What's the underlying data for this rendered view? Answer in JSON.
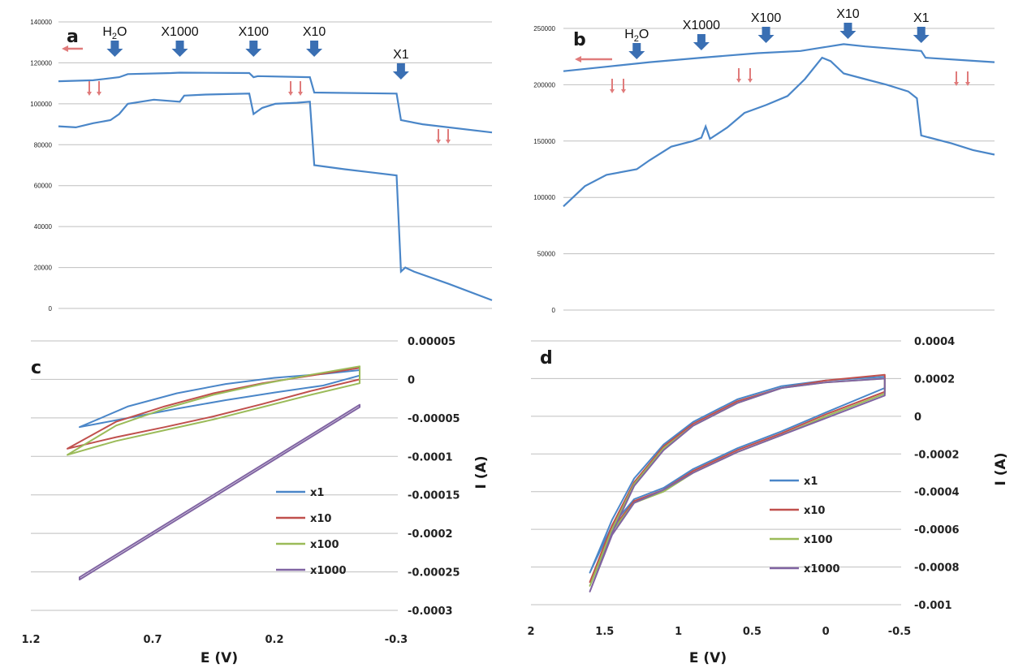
{
  "chart_data": [
    {
      "panel": "a",
      "type": "line",
      "ylim": [
        0,
        140000
      ],
      "yticks": [
        "0",
        "20000",
        "40000",
        "60000",
        "80000",
        "100000",
        "120000",
        "140000"
      ],
      "annotations": [
        {
          "label": "H",
          "sub": "2",
          "tail": "O",
          "at": 0.13
        },
        {
          "label": "X1000",
          "sub": "",
          "tail": "",
          "at": 0.28
        },
        {
          "label": "X100",
          "sub": "",
          "tail": "",
          "at": 0.45
        },
        {
          "label": "X10",
          "sub": "",
          "tail": "",
          "at": 0.59
        },
        {
          "label": "X1",
          "sub": "",
          "tail": "",
          "at": 0.79
        }
      ],
      "series": [
        {
          "values": [
            [
              0,
              111000
            ],
            [
              0.08,
              111500
            ],
            [
              0.14,
              113000
            ],
            [
              0.16,
              114500
            ],
            [
              0.26,
              115000
            ],
            [
              0.28,
              115200
            ],
            [
              0.44,
              115000
            ],
            [
              0.45,
              113000
            ],
            [
              0.46,
              113500
            ],
            [
              0.58,
              113000
            ],
            [
              0.59,
              105500
            ],
            [
              0.78,
              105000
            ],
            [
              0.79,
              92000
            ],
            [
              0.84,
              90000
            ],
            [
              1.0,
              86000
            ]
          ]
        },
        {
          "values": [
            [
              0,
              89000
            ],
            [
              0.04,
              88500
            ],
            [
              0.08,
              90500
            ],
            [
              0.12,
              92000
            ],
            [
              0.14,
              95000
            ],
            [
              0.16,
              100000
            ],
            [
              0.22,
              102000
            ],
            [
              0.28,
              101000
            ],
            [
              0.29,
              104000
            ],
            [
              0.34,
              104500
            ],
            [
              0.44,
              105000
            ],
            [
              0.45,
              95000
            ],
            [
              0.47,
              98000
            ],
            [
              0.5,
              100000
            ],
            [
              0.55,
              100500
            ],
            [
              0.58,
              101000
            ],
            [
              0.59,
              70000
            ],
            [
              0.66,
              68000
            ],
            [
              0.72,
              66500
            ],
            [
              0.78,
              65000
            ],
            [
              0.79,
              18000
            ],
            [
              0.8,
              20000
            ],
            [
              0.82,
              18000
            ],
            [
              0.9,
              12000
            ],
            [
              1.0,
              4000
            ]
          ]
        }
      ]
    },
    {
      "panel": "b",
      "type": "line",
      "ylim": [
        0,
        250000
      ],
      "yticks": [
        "0",
        "50000",
        "100000",
        "150000",
        "200000",
        "250000"
      ],
      "annotations": [
        {
          "label": "H",
          "sub": "2",
          "tail": "O",
          "at": 0.17
        },
        {
          "label": "X1000",
          "sub": "",
          "tail": "",
          "at": 0.32
        },
        {
          "label": "X100",
          "sub": "",
          "tail": "",
          "at": 0.47
        },
        {
          "label": "X10",
          "sub": "",
          "tail": "",
          "at": 0.66
        },
        {
          "label": "X1",
          "sub": "",
          "tail": "",
          "at": 0.83
        }
      ],
      "series": [
        {
          "values": [
            [
              0,
              212000
            ],
            [
              0.1,
              216000
            ],
            [
              0.2,
              220000
            ],
            [
              0.32,
              224000
            ],
            [
              0.45,
              228000
            ],
            [
              0.55,
              230000
            ],
            [
              0.6,
              233000
            ],
            [
              0.65,
              236000
            ],
            [
              0.7,
              234000
            ],
            [
              0.83,
              230000
            ],
            [
              0.84,
              224000
            ],
            [
              0.92,
              222000
            ],
            [
              1.0,
              220000
            ]
          ]
        },
        {
          "values": [
            [
              0,
              92000
            ],
            [
              0.05,
              110000
            ],
            [
              0.1,
              120000
            ],
            [
              0.17,
              125000
            ],
            [
              0.2,
              133000
            ],
            [
              0.25,
              145000
            ],
            [
              0.3,
              150000
            ],
            [
              0.32,
              153000
            ],
            [
              0.33,
              163000
            ],
            [
              0.34,
              152000
            ],
            [
              0.38,
              162000
            ],
            [
              0.42,
              175000
            ],
            [
              0.47,
              182000
            ],
            [
              0.52,
              190000
            ],
            [
              0.56,
              205000
            ],
            [
              0.6,
              224000
            ],
            [
              0.62,
              221000
            ],
            [
              0.65,
              210000
            ],
            [
              0.7,
              205000
            ],
            [
              0.75,
              200000
            ],
            [
              0.8,
              194000
            ],
            [
              0.82,
              188000
            ],
            [
              0.83,
              155000
            ],
            [
              0.9,
              148000
            ],
            [
              0.95,
              142000
            ],
            [
              1.0,
              138000
            ]
          ]
        }
      ]
    },
    {
      "panel": "c",
      "type": "line",
      "xlabel": "E (V)",
      "ylabel": "I (A)",
      "xlim": [
        1.2,
        -0.3
      ],
      "ylim": [
        -0.0003,
        5e-05
      ],
      "xticks": [
        "1.2",
        "0.7",
        "0.2",
        "-0.3"
      ],
      "yticks": [
        "0.00005",
        "0",
        "-0.00005",
        "-0.0001",
        "-0.00015",
        "-0.0002",
        "-0.00025",
        "-0.0003"
      ],
      "legend_position": "bottom-right",
      "series": [
        {
          "name": "x1",
          "color": "#4a86c8",
          "upper": [
            [
              1.0,
              -6.2e-05
            ],
            [
              0.8,
              -3.5e-05
            ],
            [
              0.6,
              -1.8e-05
            ],
            [
              0.4,
              -6e-06
            ],
            [
              0.2,
              2e-06
            ],
            [
              0.0,
              7e-06
            ],
            [
              -0.15,
              1.2e-05
            ]
          ],
          "lower": [
            [
              1.0,
              -6.2e-05
            ],
            [
              0.8,
              -5e-05
            ],
            [
              0.6,
              -3.8e-05
            ],
            [
              0.4,
              -2.7e-05
            ],
            [
              0.2,
              -1.7e-05
            ],
            [
              0.0,
              -8e-06
            ],
            [
              -0.15,
              5e-06
            ]
          ]
        },
        {
          "name": "x10",
          "color": "#c0504d",
          "upper": [
            [
              1.05,
              -9e-05
            ],
            [
              0.85,
              -5.5e-05
            ],
            [
              0.65,
              -3.5e-05
            ],
            [
              0.45,
              -1.8e-05
            ],
            [
              0.25,
              -5e-06
            ],
            [
              0.05,
              5e-06
            ],
            [
              -0.15,
              1.5e-05
            ]
          ],
          "lower": [
            [
              1.05,
              -9e-05
            ],
            [
              0.85,
              -7.5e-05
            ],
            [
              0.65,
              -6.2e-05
            ],
            [
              0.45,
              -4.8e-05
            ],
            [
              0.25,
              -3.2e-05
            ],
            [
              0.05,
              -1.5e-05
            ],
            [
              -0.15,
              0.0
            ]
          ]
        },
        {
          "name": "x100",
          "color": "#9bbb59",
          "upper": [
            [
              1.05,
              -9.8e-05
            ],
            [
              0.85,
              -6e-05
            ],
            [
              0.65,
              -3.8e-05
            ],
            [
              0.45,
              -2e-05
            ],
            [
              0.25,
              -6e-06
            ],
            [
              0.05,
              6e-06
            ],
            [
              -0.15,
              1.7e-05
            ]
          ],
          "lower": [
            [
              1.05,
              -9.8e-05
            ],
            [
              0.85,
              -8e-05
            ],
            [
              0.65,
              -6.6e-05
            ],
            [
              0.45,
              -5.2e-05
            ],
            [
              0.25,
              -3.6e-05
            ],
            [
              0.05,
              -2e-05
            ],
            [
              -0.15,
              -5e-06
            ]
          ]
        },
        {
          "name": "x1000",
          "color": "#8064a2",
          "upper": [
            [
              1.0,
              -0.000257
            ],
            [
              -0.15,
              -3.3e-05
            ]
          ],
          "lower": [
            [
              1.0,
              -0.00026
            ],
            [
              -0.15,
              -3.6e-05
            ]
          ]
        }
      ]
    },
    {
      "panel": "d",
      "type": "line",
      "xlabel": "E (V)",
      "ylabel": "I (A)",
      "xlim": [
        2,
        -0.5
      ],
      "ylim": [
        -0.001,
        0.0004
      ],
      "xticks": [
        "2",
        "1.5",
        "1",
        "0.5",
        "0",
        "-0.5"
      ],
      "yticks": [
        "0.0004",
        "0.0002",
        "0",
        "-0.0002",
        "-0.0004",
        "-0.0006",
        "-0.0008",
        "-0.001"
      ],
      "legend_position": "bottom-right",
      "series": [
        {
          "name": "x1",
          "color": "#4a86c8",
          "upper": [
            [
              1.6,
              -0.00083
            ],
            [
              1.45,
              -0.00055
            ],
            [
              1.3,
              -0.00033
            ],
            [
              1.1,
              -0.00015
            ],
            [
              0.9,
              -3e-05
            ],
            [
              0.6,
              9e-05
            ],
            [
              0.3,
              0.00016
            ],
            [
              0.0,
              0.00019
            ],
            [
              -0.4,
              0.00021
            ]
          ],
          "lower": [
            [
              1.6,
              -0.00083
            ],
            [
              1.45,
              -0.00058
            ],
            [
              1.3,
              -0.00044
            ],
            [
              1.1,
              -0.00038
            ],
            [
              0.9,
              -0.00028
            ],
            [
              0.6,
              -0.00017
            ],
            [
              0.3,
              -8e-05
            ],
            [
              0.0,
              2e-05
            ],
            [
              -0.4,
              0.00015
            ]
          ]
        },
        {
          "name": "x10",
          "color": "#c0504d",
          "upper": [
            [
              1.6,
              -0.00088
            ],
            [
              1.45,
              -0.00058
            ],
            [
              1.3,
              -0.00035
            ],
            [
              1.1,
              -0.00016
            ],
            [
              0.9,
              -4e-05
            ],
            [
              0.6,
              8e-05
            ],
            [
              0.3,
              0.00015
            ],
            [
              0.0,
              0.00019
            ],
            [
              -0.4,
              0.00022
            ]
          ],
          "lower": [
            [
              1.6,
              -0.00088
            ],
            [
              1.45,
              -0.0006
            ],
            [
              1.3,
              -0.00045
            ],
            [
              1.1,
              -0.00039
            ],
            [
              0.9,
              -0.00029
            ],
            [
              0.6,
              -0.00018
            ],
            [
              0.3,
              -9e-05
            ],
            [
              0.0,
              1e-05
            ],
            [
              -0.4,
              0.00013
            ]
          ]
        },
        {
          "name": "x100",
          "color": "#9bbb59",
          "upper": [
            [
              1.6,
              -0.0009
            ],
            [
              1.45,
              -0.0006
            ],
            [
              1.3,
              -0.00036
            ],
            [
              1.1,
              -0.00017
            ],
            [
              0.9,
              -5e-05
            ],
            [
              0.6,
              7e-05
            ],
            [
              0.3,
              0.00015
            ],
            [
              0.0,
              0.00018
            ],
            [
              -0.4,
              0.0002
            ]
          ],
          "lower": [
            [
              1.6,
              -0.0009
            ],
            [
              1.45,
              -0.00061
            ],
            [
              1.3,
              -0.00046
            ],
            [
              1.1,
              -0.0004
            ],
            [
              0.9,
              -0.0003
            ],
            [
              0.6,
              -0.00019
            ],
            [
              0.3,
              -0.0001
            ],
            [
              0.0,
              0.0
            ],
            [
              -0.4,
              0.00012
            ]
          ]
        },
        {
          "name": "x1000",
          "color": "#8064a2",
          "upper": [
            [
              1.6,
              -0.00093
            ],
            [
              1.45,
              -0.00062
            ],
            [
              1.3,
              -0.00037
            ],
            [
              1.1,
              -0.00018
            ],
            [
              0.9,
              -5e-05
            ],
            [
              0.6,
              7e-05
            ],
            [
              0.3,
              0.00015
            ],
            [
              0.0,
              0.00018
            ],
            [
              -0.4,
              0.0002
            ]
          ],
          "lower": [
            [
              1.6,
              -0.00093
            ],
            [
              1.45,
              -0.00063
            ],
            [
              1.3,
              -0.00046
            ],
            [
              1.1,
              -0.00039
            ],
            [
              0.9,
              -0.0003
            ],
            [
              0.6,
              -0.00019
            ],
            [
              0.3,
              -0.0001
            ],
            [
              0.0,
              -1e-05
            ],
            [
              -0.4,
              0.00011
            ]
          ]
        }
      ]
    }
  ],
  "style": {
    "line_color": "#4a86c8",
    "arrow_color": "#3a6fb3",
    "red_arrow_color": "#e07b7b",
    "grid_color": "#bfbfbf"
  }
}
